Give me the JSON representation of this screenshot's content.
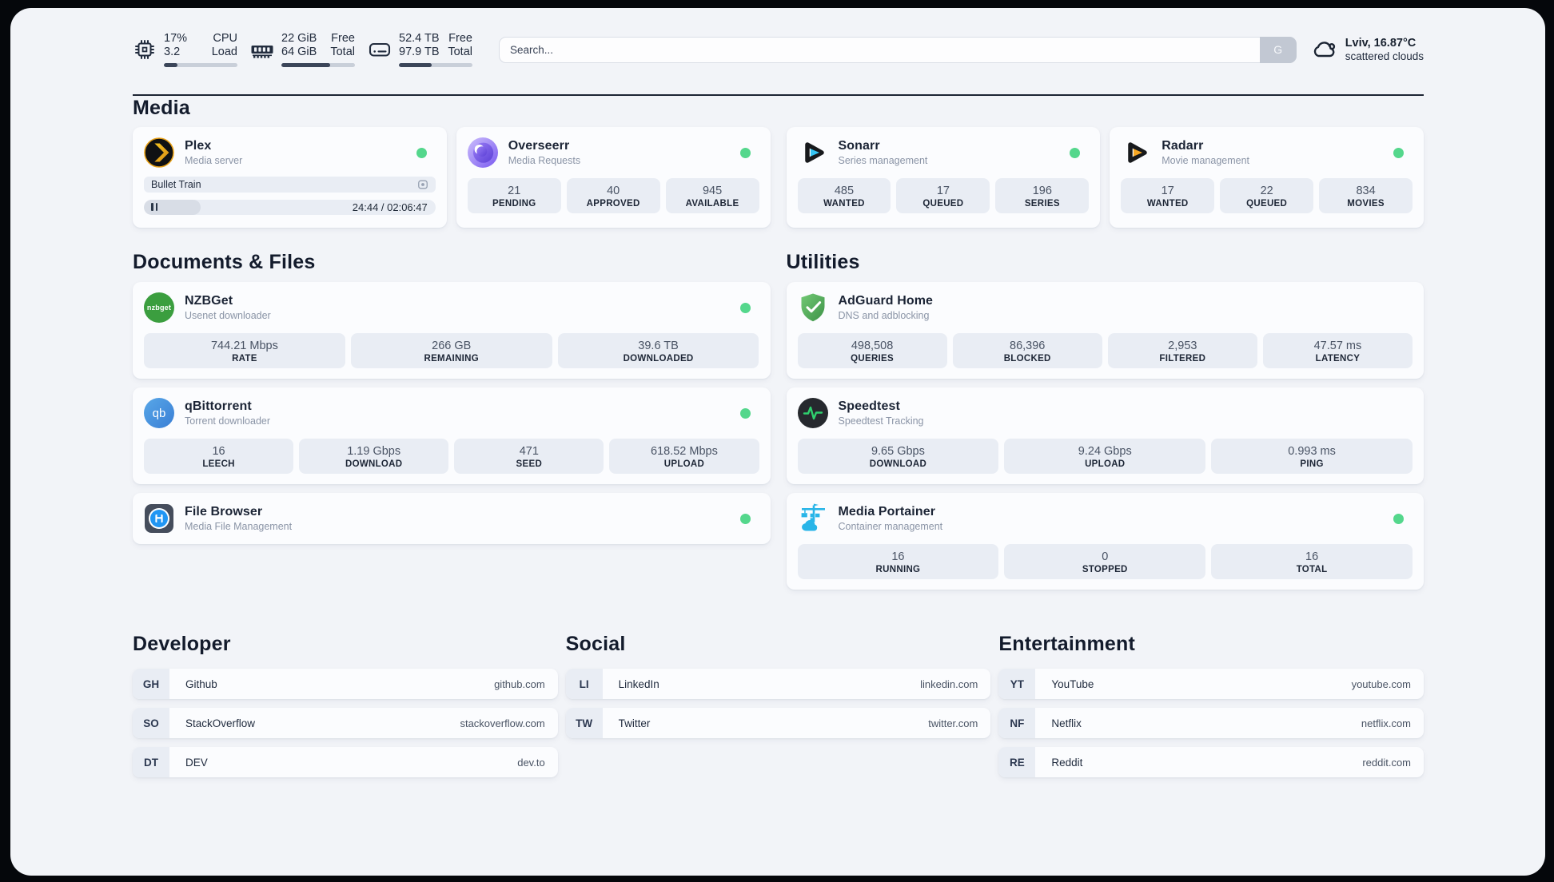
{
  "header": {
    "cpu": {
      "icon": "cpu-icon",
      "values": [
        "17%",
        "3.2"
      ],
      "labels": [
        "CPU",
        "Load"
      ],
      "progress_pct": 18
    },
    "memory": {
      "icon": "ram-icon",
      "values": [
        "22 GiB",
        "64 GiB"
      ],
      "labels": [
        "Free",
        "Total"
      ],
      "progress_pct": 66
    },
    "disk": {
      "icon": "hard-drive-icon",
      "values": [
        "52.4 TB",
        "97.9 TB"
      ],
      "labels": [
        "Free",
        "Total"
      ],
      "progress_pct": 45
    },
    "search": {
      "placeholder": "Search...",
      "button_label": "G"
    },
    "weather": {
      "icon": "cloud-icon",
      "location_temperature": "Lviv, 16.87°C",
      "condition": "scattered clouds"
    }
  },
  "media": {
    "title": "Media",
    "plex": {
      "name": "Plex",
      "subtitle": "Media server",
      "icon": "plex-icon",
      "online": true,
      "now_playing": "Bullet Train",
      "control": "pause",
      "time": "24:44 / 02:06:47",
      "progress_pct": 19.5
    },
    "overseerr": {
      "name": "Overseerr",
      "subtitle": "Media Requests",
      "icon": "overseerr-icon",
      "online": true,
      "stats": [
        {
          "value": "21",
          "label": "PENDING"
        },
        {
          "value": "40",
          "label": "APPROVED"
        },
        {
          "value": "945",
          "label": "AVAILABLE"
        }
      ]
    },
    "sonarr": {
      "name": "Sonarr",
      "subtitle": "Series management",
      "icon": "sonarr-icon",
      "online": true,
      "stats": [
        {
          "value": "485",
          "label": "WANTED"
        },
        {
          "value": "17",
          "label": "QUEUED"
        },
        {
          "value": "196",
          "label": "SERIES"
        }
      ]
    },
    "radarr": {
      "name": "Radarr",
      "subtitle": "Movie management",
      "icon": "radarr-icon",
      "online": true,
      "stats": [
        {
          "value": "17",
          "label": "WANTED"
        },
        {
          "value": "22",
          "label": "QUEUED"
        },
        {
          "value": "834",
          "label": "MOVIES"
        }
      ]
    }
  },
  "documents": {
    "title": "Documents & Files",
    "nzbget": {
      "name": "NZBGet",
      "subtitle": "Usenet downloader",
      "icon": "nzbget-icon",
      "icon_text": "nzbget",
      "online": true,
      "stats": [
        {
          "value": "744.21 Mbps",
          "label": "RATE"
        },
        {
          "value": "266 GB",
          "label": "REMAINING"
        },
        {
          "value": "39.6 TB",
          "label": "DOWNLOADED"
        }
      ]
    },
    "qbittorrent": {
      "name": "qBittorrent",
      "subtitle": "Torrent downloader",
      "icon": "qbittorrent-icon",
      "icon_text": "qb",
      "online": true,
      "stats": [
        {
          "value": "16",
          "label": "LEECH"
        },
        {
          "value": "1.19 Gbps",
          "label": "DOWNLOAD"
        },
        {
          "value": "471",
          "label": "SEED"
        },
        {
          "value": "618.52 Mbps",
          "label": "UPLOAD"
        }
      ]
    },
    "filebrowser": {
      "name": "File Browser",
      "subtitle": "Media File Management",
      "icon": "filebrowser-icon",
      "online": true
    }
  },
  "utilities": {
    "title": "Utilities",
    "adguard": {
      "name": "AdGuard Home",
      "subtitle": "DNS and adblocking",
      "icon": "adguard-icon",
      "stats": [
        {
          "value": "498,508",
          "label": "QUERIES"
        },
        {
          "value": "86,396",
          "label": "BLOCKED"
        },
        {
          "value": "2,953",
          "label": "FILTERED"
        },
        {
          "value": "47.57 ms",
          "label": "LATENCY"
        }
      ]
    },
    "speedtest": {
      "name": "Speedtest",
      "subtitle": "Speedtest Tracking",
      "icon": "speedtest-icon",
      "stats": [
        {
          "value": "9.65 Gbps",
          "label": "DOWNLOAD"
        },
        {
          "value": "9.24 Gbps",
          "label": "UPLOAD"
        },
        {
          "value": "0.993 ms",
          "label": "PING"
        }
      ]
    },
    "portainer": {
      "name": "Media Portainer",
      "subtitle": "Container management",
      "icon": "portainer-icon",
      "online": true,
      "stats": [
        {
          "value": "16",
          "label": "RUNNING"
        },
        {
          "value": "0",
          "label": "STOPPED"
        },
        {
          "value": "16",
          "label": "TOTAL"
        }
      ]
    }
  },
  "bookmarks": {
    "developer": {
      "title": "Developer",
      "items": [
        {
          "abbr": "GH",
          "name": "Github",
          "url": "github.com"
        },
        {
          "abbr": "SO",
          "name": "StackOverflow",
          "url": "stackoverflow.com"
        },
        {
          "abbr": "DT",
          "name": "DEV",
          "url": "dev.to"
        }
      ]
    },
    "social": {
      "title": "Social",
      "items": [
        {
          "abbr": "LI",
          "name": "LinkedIn",
          "url": "linkedin.com"
        },
        {
          "abbr": "TW",
          "name": "Twitter",
          "url": "twitter.com"
        }
      ]
    },
    "entertainment": {
      "title": "Entertainment",
      "items": [
        {
          "abbr": "YT",
          "name": "YouTube",
          "url": "youtube.com"
        },
        {
          "abbr": "NF",
          "name": "Netflix",
          "url": "netflix.com"
        },
        {
          "abbr": "RE",
          "name": "Reddit",
          "url": "reddit.com"
        }
      ]
    }
  },
  "colors": {
    "online_green": "#54d78c",
    "progress_fill": "#3b4559",
    "progress_track": "#c9cfd9",
    "panel_background": "#f2f4f8"
  }
}
